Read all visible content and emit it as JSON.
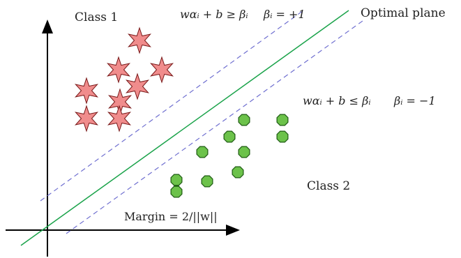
{
  "labels": {
    "class1": "Class 1",
    "class2": "Class 2",
    "optimal_plane": "Optimal plane",
    "margin": "Margin = 2/||w||"
  },
  "equations": {
    "upper_constraint": "wαᵢ + b ≥ βᵢ",
    "upper_condition": "βᵢ = +1",
    "lower_constraint": "wαᵢ + b ≤ βᵢ",
    "lower_condition": "βᵢ = −1"
  },
  "colors": {
    "optimal_line": "#1aa34a",
    "margin_line": "#6f6fd0",
    "star_fill": "#f08c8c",
    "star_stroke": "#7a1a1a",
    "circle_fill": "#6cc24a",
    "circle_stroke": "#1d5a12",
    "axis": "#000000"
  },
  "class1_marker": "star",
  "class2_marker": "octagon"
}
